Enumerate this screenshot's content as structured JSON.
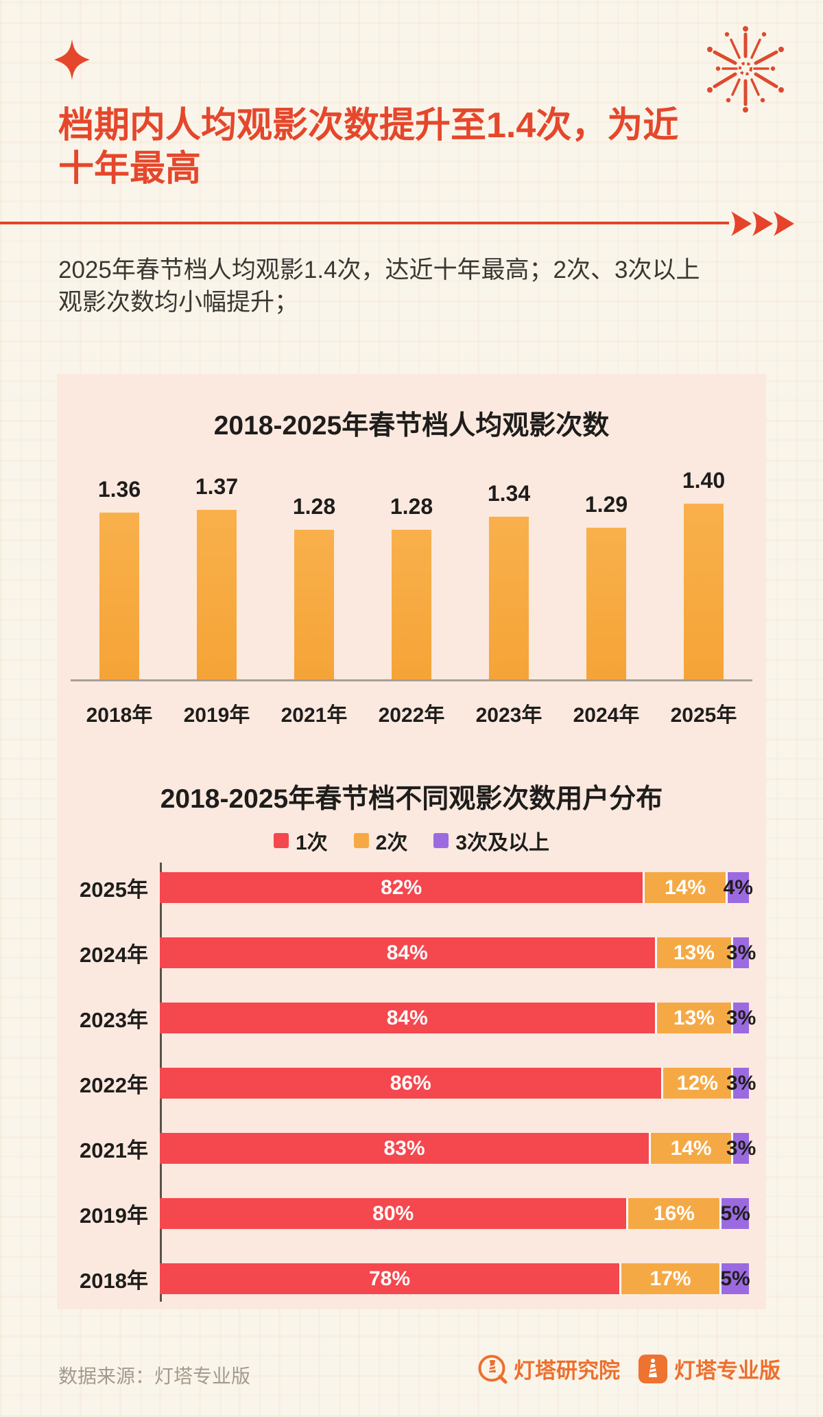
{
  "page": {
    "title": "档期内人均观影次数提升至1.4次，为近十年最高",
    "subtitle": "2025年春节档人均观影1.4次，达近十年最高；2次、3次以上观影次数均小幅提升；",
    "icons": {
      "top_left": "sparkle-icon",
      "top_right": "fireworks-icon",
      "divider_end": "triple-arrow-right-icon"
    },
    "colors": {
      "accent_red": "#e5472c",
      "card_background": "#fbe9e0",
      "bar_orange": "#f7a83e",
      "stack_red": "#f5474e",
      "stack_orange": "#f5a945",
      "stack_purple": "#9c6ae0",
      "logo_orange": "#ec6f2e"
    },
    "footer": {
      "source_text": "数据来源：灯塔专业版",
      "logo_research": "灯塔研究院",
      "logo_pro": "灯塔专业版"
    }
  },
  "chart_data": [
    {
      "type": "bar",
      "title": "2018-2025年春节档人均观影次数",
      "categories": [
        "2018年",
        "2019年",
        "2021年",
        "2022年",
        "2023年",
        "2024年",
        "2025年"
      ],
      "values": [
        1.36,
        1.37,
        1.28,
        1.28,
        1.34,
        1.29,
        1.4
      ],
      "bar_color": "#f7a83e",
      "ylim": [
        1.1,
        1.45
      ],
      "grid": false,
      "value_labels": "above bars, two decimals"
    },
    {
      "type": "bar",
      "subtype": "horizontal-stacked-100pct",
      "title": "2018-2025年春节档不同观影次数用户分布",
      "categories": [
        "2025年",
        "2024年",
        "2023年",
        "2022年",
        "2021年",
        "2019年",
        "2018年"
      ],
      "legend": [
        "1次",
        "2次",
        "3次及以上"
      ],
      "legend_position": "top-center",
      "series": [
        {
          "name": "1次",
          "color": "#f5474e",
          "values": [
            82,
            84,
            84,
            86,
            83,
            80,
            78
          ]
        },
        {
          "name": "2次",
          "color": "#f5a945",
          "values": [
            14,
            13,
            13,
            12,
            14,
            16,
            17
          ]
        },
        {
          "name": "3次及以上",
          "color": "#9c6ae0",
          "values": [
            4,
            3,
            3,
            3,
            3,
            5,
            5
          ]
        }
      ],
      "value_suffix": "%"
    }
  ]
}
